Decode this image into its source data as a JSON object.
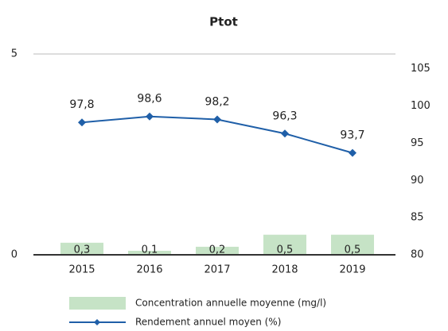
{
  "chart_data": {
    "type": "bar",
    "title": "Ptot",
    "categories": [
      "2015",
      "2016",
      "2017",
      "2018",
      "2019"
    ],
    "series": [
      {
        "name": "Concentration annuelle moyenne (mg/l)",
        "type": "bar",
        "color": "#c6e3c6",
        "values": [
          0.3,
          0.1,
          0.2,
          0.5,
          0.5
        ],
        "value_labels": [
          "0,3",
          "0,1",
          "0,2",
          "0,5",
          "0,5"
        ]
      },
      {
        "name": "Rendement annuel moyen (%)",
        "type": "line",
        "axis": "y2",
        "color": "#1f5fa8",
        "values": [
          97.8,
          98.6,
          98.2,
          96.3,
          93.7
        ],
        "value_labels": [
          "97,8",
          "98,6",
          "98,2",
          "96,3",
          "93,7"
        ]
      }
    ],
    "ylim": [
      0,
      5
    ],
    "yticks": [
      0,
      5
    ],
    "y2lim": [
      80,
      107
    ],
    "y2ticks": [
      80,
      85,
      90,
      95,
      100,
      105
    ],
    "grid": true,
    "legend": "bottom"
  }
}
